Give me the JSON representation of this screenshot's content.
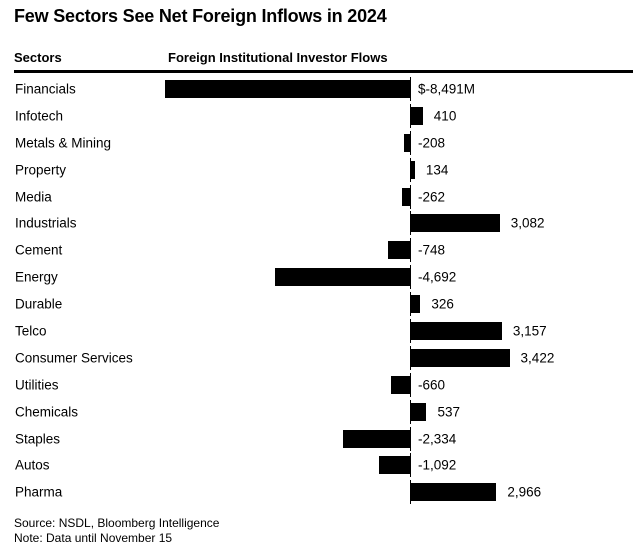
{
  "page": {
    "title": "Few Sectors See Net Foreign Inflows in 2024",
    "columns": {
      "left": "Sectors",
      "right": "Foreign Institutional Investor Flows"
    },
    "footer": {
      "source": "Source: NSDL, Bloomberg Intelligence",
      "note": "Note: Data until November 15"
    },
    "colors": {
      "bar": "#000000",
      "text": "#000000",
      "background": "#ffffff",
      "rule": "#000000"
    }
  },
  "chart_data": {
    "type": "bar",
    "orientation": "horizontal",
    "title": "Few Sectors See Net Foreign Inflows in 2024",
    "xlabel": "Foreign Institutional Investor Flows",
    "ylabel": "Sectors",
    "unit": "USD millions",
    "xlim": [
      -8491,
      3422
    ],
    "grid": false,
    "legend": false,
    "categories": [
      "Financials",
      "Infotech",
      "Metals & Mining",
      "Property",
      "Media",
      "Industrials",
      "Cement",
      "Energy",
      "Durable",
      "Telco",
      "Consumer Services",
      "Utilities",
      "Chemicals",
      "Staples",
      "Autos",
      "Pharma"
    ],
    "values": [
      -8491,
      410,
      -208,
      134,
      -262,
      3082,
      -748,
      -4692,
      326,
      3157,
      3422,
      -660,
      537,
      -2334,
      -1092,
      2966
    ],
    "value_labels": [
      "$-8,491M",
      "410",
      "-208",
      "134",
      "-262",
      "3,082",
      "-748",
      "-4,692",
      "326",
      "3,157",
      "3,422",
      "-660",
      "537",
      "-2,334",
      "-1,092",
      "2,966"
    ]
  }
}
